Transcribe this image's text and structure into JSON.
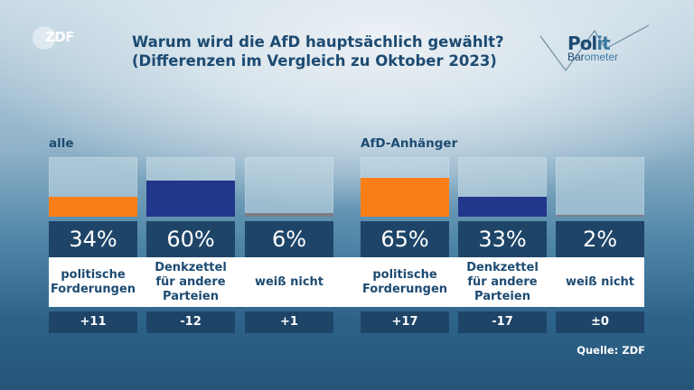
{
  "header": {
    "broadcaster_logo": "ZDF",
    "title_line1": "Warum wird die AfD hauptsächlich gewählt?",
    "title_line2": "(Differenzen im Vergleich zu Oktober 2023)",
    "brand_logo": {
      "part1": "Pol",
      "part2": "it",
      "sub1": "Bar",
      "sub2": "ometer"
    }
  },
  "colors": {
    "politische_forderungen": "#fb7f18",
    "denkzettel": "#22368b",
    "weiss_nicht": "#7e7e86",
    "box_dark": "#1e4568",
    "text_dark": "#1d4b72"
  },
  "chart_data": {
    "type": "bar",
    "title": "Warum wird die AfD hauptsächlich gewählt? (Differenzen im Vergleich zu Oktober 2023)",
    "xlabel": "",
    "ylabel": "",
    "ylim": [
      0,
      100
    ],
    "categories": [
      "politische Forderungen",
      "Denkzettel für andere Parteien",
      "weiß nicht"
    ],
    "groups": [
      {
        "name": "alle",
        "values": [
          34,
          60,
          6
        ],
        "labels": [
          "34%",
          "60%",
          "6%"
        ],
        "differences": [
          "+11",
          "-12",
          "+1"
        ]
      },
      {
        "name": "AfD-Anhänger",
        "values": [
          65,
          33,
          2
        ],
        "labels": [
          "65%",
          "33%",
          "2%"
        ],
        "differences": [
          "+17",
          "-17",
          "±0"
        ]
      }
    ],
    "category_labels": [
      [
        "politische",
        "Forderungen"
      ],
      [
        "Denkzettel",
        "für andere",
        "Parteien"
      ],
      [
        "weiß nicht"
      ]
    ],
    "legend": "none"
  },
  "footer": {
    "source": "Quelle: ZDF"
  }
}
